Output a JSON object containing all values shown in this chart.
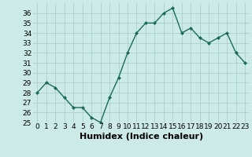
{
  "x": [
    0,
    1,
    2,
    3,
    4,
    5,
    6,
    7,
    8,
    9,
    10,
    11,
    12,
    13,
    14,
    15,
    16,
    17,
    18,
    19,
    20,
    21,
    22,
    23
  ],
  "y": [
    28.0,
    29.0,
    28.5,
    27.5,
    26.5,
    26.5,
    25.5,
    25.0,
    27.5,
    29.5,
    32.0,
    34.0,
    35.0,
    35.0,
    36.0,
    36.5,
    34.0,
    34.5,
    33.5,
    33.0,
    33.5,
    34.0,
    32.0,
    31.0
  ],
  "line_color": "#1a6b5e",
  "marker": "D",
  "marker_size": 2.0,
  "bg_color": "#cceae8",
  "grid_color": "#aacfcd",
  "xlabel": "Humidex (Indice chaleur)",
  "ylim": [
    25,
    37
  ],
  "xlim": [
    -0.5,
    23.5
  ],
  "yticks": [
    25,
    26,
    27,
    28,
    29,
    30,
    31,
    32,
    33,
    34,
    35,
    36
  ],
  "xtick_labels": [
    "0",
    "1",
    "2",
    "3",
    "4",
    "5",
    "6",
    "7",
    "8",
    "9",
    "10",
    "11",
    "12",
    "13",
    "14",
    "15",
    "16",
    "17",
    "18",
    "19",
    "20",
    "21",
    "22",
    "23"
  ],
  "xlabel_fontsize": 8,
  "tick_fontsize": 6.5,
  "linewidth": 1.0
}
